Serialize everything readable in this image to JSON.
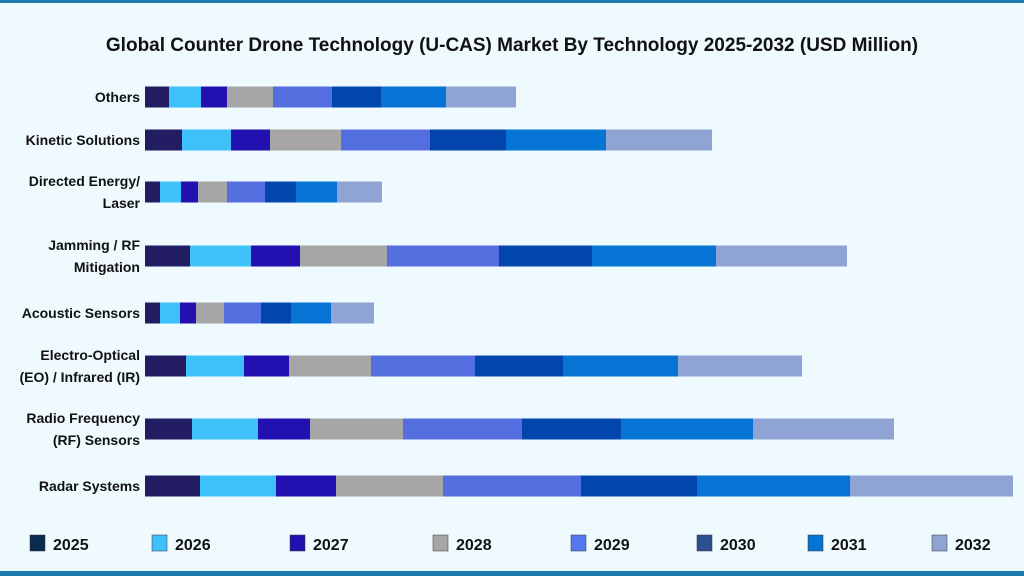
{
  "chart_data": {
    "type": "bar",
    "orientation": "horizontal",
    "stacked": true,
    "title": "Global Counter Drone Technology (U-CAS) Market By Technology 2025-2032 (USD Million)",
    "xlabel": "",
    "ylabel": "",
    "grid": false,
    "legend_position": "bottom",
    "categories": [
      [
        "Others"
      ],
      [
        "Kinetic Solutions"
      ],
      [
        "Directed Energy/",
        "Laser"
      ],
      [
        "Jamming / RF",
        "Mitigation"
      ],
      [
        "Acoustic Sensors"
      ],
      [
        "Electro-Optical",
        "(EO) / Infrared (IR)"
      ],
      [
        "Radio Frequency",
        "(RF) Sensors"
      ],
      [
        "Radar Systems"
      ]
    ],
    "series": [
      {
        "name": "2025",
        "color": "#221c62",
        "legend_color": "#0b2a4f",
        "values": [
          24,
          37,
          15,
          45,
          15,
          41,
          47,
          55
        ]
      },
      {
        "name": "2026",
        "color": "#3ec0f8",
        "legend_color": "#3ec0f8",
        "values": [
          32,
          49,
          21,
          61,
          20,
          58,
          66,
          76
        ]
      },
      {
        "name": "2027",
        "color": "#2310b0",
        "legend_color": "#2310b0",
        "values": [
          26,
          39,
          17,
          49,
          16,
          45,
          52,
          60
        ]
      },
      {
        "name": "2028",
        "color": "#a6a6a6",
        "legend_color": "#a6a6a6",
        "values": [
          46,
          71,
          29,
          87,
          28,
          82,
          93,
          107
        ]
      },
      {
        "name": "2029",
        "color": "#546ee0",
        "legend_color": "#5577f0",
        "values": [
          59,
          89,
          38,
          112,
          37,
          104,
          119,
          138
        ]
      },
      {
        "name": "2030",
        "color": "#0046ad",
        "legend_color": "#2e4f8f",
        "values": [
          49,
          76,
          31,
          93,
          30,
          88,
          99,
          116
        ]
      },
      {
        "name": "2031",
        "color": "#0574d4",
        "legend_color": "#0574d4",
        "values": [
          65,
          100,
          41,
          124,
          40,
          115,
          132,
          153
        ]
      },
      {
        "name": "2032",
        "color": "#8fa4d4",
        "legend_color": "#8fa4d4",
        "values": [
          70,
          106,
          45,
          131,
          43,
          124,
          141,
          163
        ]
      }
    ]
  }
}
